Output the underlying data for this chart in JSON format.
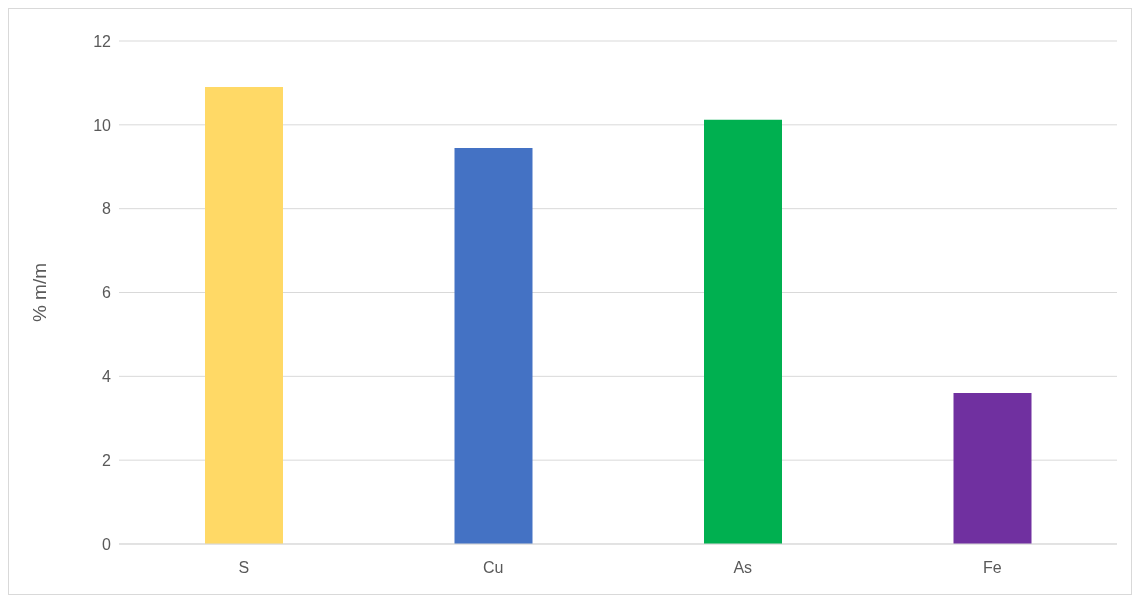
{
  "chart_data": {
    "type": "bar",
    "ylabel": "% m/m",
    "categories": [
      "S",
      "Cu",
      "As",
      "Fe"
    ],
    "values": [
      10.9,
      9.45,
      10.12,
      3.6
    ],
    "colors": [
      "#ffd966",
      "#4472c4",
      "#00b050",
      "#7030a0"
    ],
    "ylim": [
      0,
      12
    ],
    "yticks": [
      0,
      2,
      4,
      6,
      8,
      10,
      12
    ],
    "grid": "y"
  }
}
